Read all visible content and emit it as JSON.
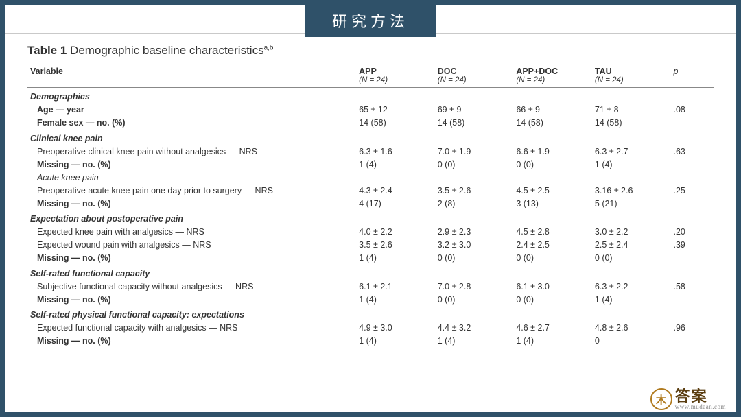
{
  "banner": "研究方法",
  "title_prefix": "Table 1",
  "title_rest": "  Demographic baseline characteristics",
  "title_sup": "a,b",
  "columns": {
    "variable": "Variable",
    "groups": [
      {
        "head": "APP",
        "sub": "(N = 24)"
      },
      {
        "head": "DOC",
        "sub": "(N = 24)"
      },
      {
        "head": "APP+DOC",
        "sub": "(N = 24)"
      },
      {
        "head": "TAU",
        "sub": "(N = 24)"
      }
    ],
    "p": "p"
  },
  "sections": [
    {
      "label": "Demographics",
      "rows": [
        {
          "label": "Age — year",
          "bold": true,
          "v": [
            "65 ± 12",
            "69 ± 9",
            "66 ± 9",
            "71 ± 8"
          ],
          "p": ".08"
        },
        {
          "label": "Female sex — no. (%)",
          "bold": true,
          "v": [
            "14 (58)",
            "14 (58)",
            "14 (58)",
            "14 (58)"
          ],
          "p": ""
        }
      ]
    },
    {
      "label": "Clinical knee pain",
      "rows": [
        {
          "label": "Preoperative clinical knee pain without analgesics — NRS",
          "v": [
            "6.3 ± 1.6",
            "7.0 ± 1.9",
            "6.6 ± 1.9",
            "6.3 ± 2.7"
          ],
          "p": ".63"
        },
        {
          "label": "Missing — no. (%)",
          "bold": true,
          "v": [
            "1 (4)",
            "0 (0)",
            "0 (0)",
            "1 (4)"
          ],
          "p": ""
        },
        {
          "sub": true,
          "label": "Acute knee pain"
        },
        {
          "label": "Preoperative acute knee pain one day prior to surgery — NRS",
          "v": [
            "4.3 ± 2.4",
            "3.5 ± 2.6",
            "4.5 ± 2.5",
            "3.16 ± 2.6"
          ],
          "p": ".25"
        },
        {
          "label": "Missing — no. (%)",
          "bold": true,
          "v": [
            "4 (17)",
            "2 (8)",
            "3 (13)",
            "5 (21)"
          ],
          "p": ""
        }
      ]
    },
    {
      "label": "Expectation about postoperative pain",
      "rows": [
        {
          "label": "Expected knee pain with analgesics — NRS",
          "v": [
            "4.0 ± 2.2",
            "2.9 ± 2.3",
            "4.5 ± 2.8",
            "3.0 ± 2.2"
          ],
          "p": ".20"
        },
        {
          "label": "Expected wound pain with analgesics — NRS",
          "v": [
            "3.5 ± 2.6",
            "3.2 ± 3.0",
            "2.4 ± 2.5",
            "2.5 ± 2.4"
          ],
          "p": ".39"
        },
        {
          "label": "Missing — no. (%)",
          "bold": true,
          "v": [
            "1 (4)",
            "0 (0)",
            "0 (0)",
            "0 (0)"
          ],
          "p": ""
        }
      ]
    },
    {
      "label": "Self-rated functional capacity",
      "rows": [
        {
          "label": "Subjective functional capacity without analgesics — NRS",
          "v": [
            "6.1 ± 2.1",
            "7.0 ± 2.8",
            "6.1 ± 3.0",
            "6.3 ± 2.2"
          ],
          "p": ".58"
        },
        {
          "label": "Missing — no. (%)",
          "bold": true,
          "v": [
            "1 (4)",
            "0 (0)",
            "0 (0)",
            "1 (4)"
          ],
          "p": ""
        }
      ]
    },
    {
      "label": "Self-rated physical functional capacity: expectations",
      "rows": [
        {
          "label": "Expected functional capacity with analgesics — NRS",
          "v": [
            "4.9 ± 3.0",
            "4.4 ± 3.2",
            "4.6 ± 2.7",
            "4.8 ± 2.6"
          ],
          "p": ".96"
        },
        {
          "label": "Missing — no. (%)",
          "bold": true,
          "v": [
            "1 (4)",
            "1 (4)",
            "1 (4)",
            "0"
          ],
          "p": ""
        }
      ]
    }
  ],
  "logo": {
    "mark": "木",
    "name": "答案",
    "url": "www.mudaan.com"
  },
  "colors": {
    "frame": "#2f5169",
    "rule": "#c9c9c9",
    "border": "#888"
  }
}
